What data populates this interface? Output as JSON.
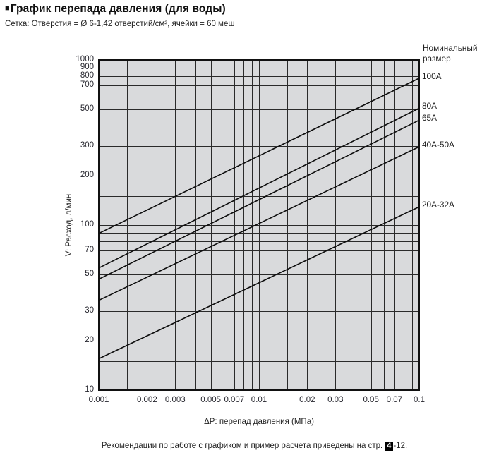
{
  "header": {
    "bullet": "■",
    "title": "График перепада давления (для воды)",
    "subtitle": "Сетка: Отверстия = Ø 6-1,42 отверстий/см², ячейки = 60 меш"
  },
  "footnote": {
    "text_before": "Рекомендации по работе с графиком и пример расчета приведены на стр.",
    "page": "4",
    "text_after": "-12."
  },
  "colors": {
    "plot_background": "#d9dadc",
    "gridline": "#2a2a2a",
    "border": "#111111",
    "line": "#0d0d0d",
    "text": "#222222",
    "tick_text": "#26262e"
  },
  "chart_data": {
    "type": "line",
    "title": "График перепада давления (для воды)",
    "xlabel": "ΔP: перепад давления (МПа)",
    "ylabel": "V: Расход, л/мин",
    "x_scale": "log",
    "y_scale": "log",
    "xlim": [
      0.001,
      0.1
    ],
    "ylim": [
      10,
      1000
    ],
    "grid": true,
    "legend_position": "right",
    "legend_title": "Номинальный размер",
    "x_ticks_labeled": [
      "0.001",
      "0.002",
      "0.003",
      "0.005",
      "0.007",
      "0.01",
      "0.02",
      "0.03",
      "0.05",
      "0.07",
      "0.1"
    ],
    "x_tick_values": [
      0.001,
      0.002,
      0.003,
      0.005,
      0.007,
      0.01,
      0.02,
      0.03,
      0.05,
      0.07,
      0.1
    ],
    "y_ticks_labeled": [
      "1000",
      "900",
      "800",
      "700",
      "500",
      "300",
      "200",
      "100",
      "70",
      "50",
      "30",
      "20",
      "10"
    ],
    "y_tick_values": [
      1000,
      900,
      800,
      700,
      500,
      300,
      200,
      100,
      70,
      50,
      30,
      20,
      10
    ],
    "x_gridlines": [
      0.001,
      0.0015,
      0.002,
      0.003,
      0.004,
      0.005,
      0.006,
      0.007,
      0.008,
      0.009,
      0.01,
      0.015,
      0.02,
      0.03,
      0.04,
      0.05,
      0.06,
      0.07,
      0.08,
      0.09,
      0.1
    ],
    "y_gridlines": [
      10,
      15,
      20,
      30,
      40,
      50,
      60,
      70,
      80,
      90,
      100,
      150,
      200,
      300,
      400,
      500,
      600,
      700,
      800,
      900,
      1000
    ],
    "series": [
      {
        "name": "100A",
        "x": [
          0.001,
          0.1
        ],
        "y": [
          89,
          775
        ]
      },
      {
        "name": "80A",
        "x": [
          0.001,
          0.1
        ],
        "y": [
          55,
          510
        ]
      },
      {
        "name": "65A",
        "x": [
          0.001,
          0.1
        ],
        "y": [
          47,
          432
        ]
      },
      {
        "name": "40A-50A",
        "x": [
          0.001,
          0.1
        ],
        "y": [
          35,
          298
        ]
      },
      {
        "name": "20A-32A",
        "x": [
          0.001,
          0.1
        ],
        "y": [
          15.5,
          129
        ]
      }
    ]
  }
}
